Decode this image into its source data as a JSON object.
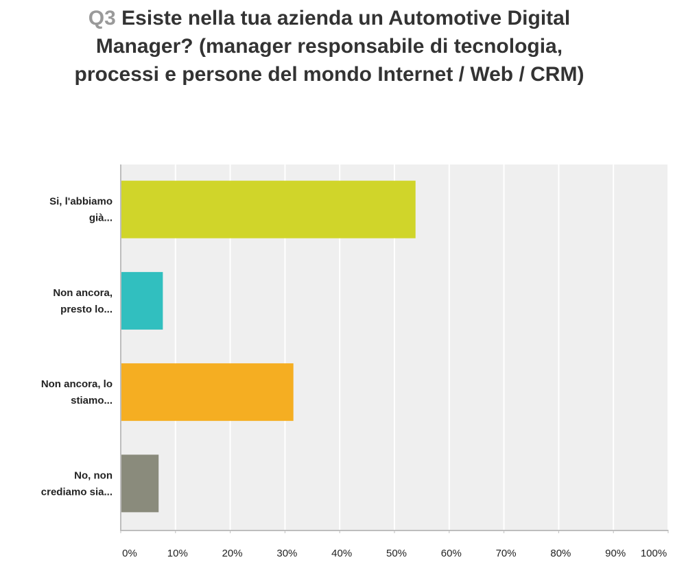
{
  "title": {
    "qnum": "Q3",
    "text": "Esiste nella tua azienda un Automotive Digital Manager? (manager responsabile di tecnologia, processi e persone del mondo Internet / Web / CRM)"
  },
  "colors": {
    "plot_background": "#efefef",
    "grid": "#ffffff",
    "axis": "#bdbdbd"
  },
  "chart_data": {
    "type": "bar",
    "orientation": "horizontal",
    "categories": [
      [
        "Si, l'abbiamo",
        "già..."
      ],
      [
        "Non ancora,",
        "presto lo..."
      ],
      [
        "Non ancora, lo",
        "stiamo..."
      ],
      [
        "No, non",
        "crediamo sia..."
      ]
    ],
    "values": [
      53.85,
      7.69,
      31.54,
      6.92
    ],
    "bar_colors": [
      "#d0d52a",
      "#31bfbf",
      "#f5ae22",
      "#8a8b7c"
    ],
    "xlim": [
      0,
      100
    ],
    "x_ticks": [
      0,
      10,
      20,
      30,
      40,
      50,
      60,
      70,
      80,
      90,
      100
    ],
    "x_tick_labels": [
      "0%",
      "10%",
      "20%",
      "30%",
      "40%",
      "50%",
      "60%",
      "70%",
      "80%",
      "90%",
      "100%"
    ],
    "xlabel": "",
    "ylabel": "",
    "grid": true
  }
}
